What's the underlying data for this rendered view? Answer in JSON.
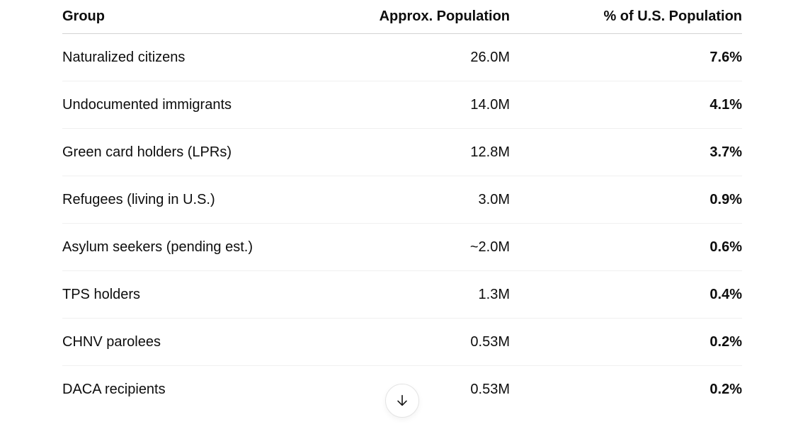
{
  "table": {
    "columns": [
      {
        "label": "Group",
        "align": "left"
      },
      {
        "label": "Approx. Population",
        "align": "right"
      },
      {
        "label": "% of U.S. Population",
        "align": "right"
      }
    ],
    "rows": [
      {
        "group": "Naturalized citizens",
        "population": "26.0M",
        "percent": "7.6%"
      },
      {
        "group": "Undocumented immigrants",
        "population": "14.0M",
        "percent": "4.1%"
      },
      {
        "group": "Green card holders (LPRs)",
        "population": "12.8M",
        "percent": "3.7%"
      },
      {
        "group": "Refugees (living in U.S.)",
        "population": "3.0M",
        "percent": "0.9%"
      },
      {
        "group": "Asylum seekers (pending est.)",
        "population": "~2.0M",
        "percent": "0.6%"
      },
      {
        "group": "TPS holders",
        "population": "1.3M",
        "percent": "0.4%"
      },
      {
        "group": "CHNV parolees",
        "population": "0.53M",
        "percent": "0.2%"
      },
      {
        "group": "DACA recipients",
        "population": "0.53M",
        "percent": "0.2%"
      }
    ]
  },
  "scroll_button": {
    "icon": "arrow-down"
  },
  "colors": {
    "background": "#ffffff",
    "text": "#0d0d0d",
    "header_border": "#d3d3d3",
    "row_border": "#f0f0f0",
    "button_border": "#e4e4e4",
    "arrow": "#1a1a1a"
  }
}
